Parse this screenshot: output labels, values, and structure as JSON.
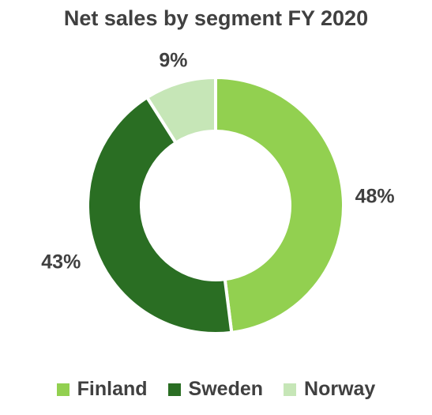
{
  "chart_data": {
    "type": "pie",
    "title": "Net sales by segment FY 2020",
    "categories": [
      "Finland",
      "Sweden",
      "Norway"
    ],
    "values": [
      48,
      43,
      9
    ],
    "value_labels": [
      "48%",
      "43%",
      "9%"
    ],
    "colors": [
      "#92d050",
      "#2a6e23",
      "#c6e6b7"
    ],
    "legend_placement": "bottom",
    "donut": true
  }
}
